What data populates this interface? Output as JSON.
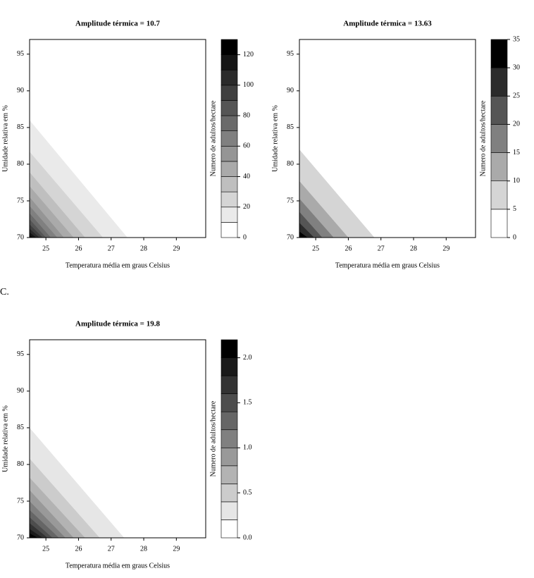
{
  "chart_data": [
    {
      "type": "contour",
      "title": "Amplitude térmica = 10.7",
      "x_label": "Temperatura média em graus Celsius",
      "y_label": "Umidade relativa em %",
      "colorbar_label": "Numero de adultos/hectare",
      "xlim": [
        24.5,
        29.9
      ],
      "ylim": [
        70,
        97
      ],
      "xticks": [
        25,
        26,
        27,
        28,
        29
      ],
      "yticks": [
        70,
        75,
        80,
        85,
        90,
        95
      ],
      "levels": [
        0,
        10,
        20,
        30,
        40,
        50,
        60,
        70,
        80,
        90,
        100,
        110,
        120,
        130
      ],
      "cbar_ticks": [
        0,
        20,
        40,
        60,
        80,
        100,
        120
      ],
      "colormap": [
        "#ffffff",
        "#000000"
      ],
      "contours": [
        {
          "y": 86,
          "x": 27.5
        },
        {
          "y": 81.7,
          "x": 26.75
        },
        {
          "y": 78.9,
          "x": 26.2
        },
        {
          "y": 77,
          "x": 25.85
        },
        {
          "y": 75.5,
          "x": 25.55
        },
        {
          "y": 74.3,
          "x": 25.35
        },
        {
          "y": 73.3,
          "x": 25.15
        },
        {
          "y": 72.5,
          "x": 25.0
        },
        {
          "y": 71.8,
          "x": 24.9
        },
        {
          "y": 71.2,
          "x": 24.8
        },
        {
          "y": 70.7,
          "x": 24.7
        },
        {
          "y": 70.3,
          "x": 24.6
        }
      ]
    },
    {
      "type": "contour",
      "title": "Amplitude térmica = 13.63",
      "x_label": "Temperatura média em graus Celsius",
      "y_label": "Umidade relativa em %",
      "colorbar_label": "Numero de adultos/hectare",
      "xlim": [
        24.5,
        29.9
      ],
      "ylim": [
        70,
        97
      ],
      "xticks": [
        25,
        26,
        27,
        28,
        29
      ],
      "yticks": [
        70,
        75,
        80,
        85,
        90,
        95
      ],
      "levels": [
        0,
        5,
        10,
        15,
        20,
        25,
        30,
        35
      ],
      "cbar_ticks": [
        0,
        5,
        10,
        15,
        20,
        25,
        30,
        35
      ],
      "colormap": [
        "#ffffff",
        "#000000"
      ],
      "contours": [
        {
          "y": 82,
          "x": 26.8
        },
        {
          "y": 77.7,
          "x": 26.0
        },
        {
          "y": 75.3,
          "x": 25.55
        },
        {
          "y": 73.5,
          "x": 25.2
        },
        {
          "y": 72,
          "x": 24.95
        },
        {
          "y": 70.8,
          "x": 24.75
        }
      ]
    },
    {
      "type": "contour",
      "panel_label": "C.",
      "title": "Amplitude térmica = 19.8",
      "x_label": "Temperatura média em graus Celsius",
      "y_label": "Umidade relativa em %",
      "colorbar_label": "Numero de adultos/hectare",
      "xlim": [
        24.5,
        29.9
      ],
      "ylim": [
        70,
        97
      ],
      "xticks": [
        25,
        26,
        27,
        28,
        29
      ],
      "yticks": [
        70,
        75,
        80,
        85,
        90,
        95
      ],
      "levels": [
        0,
        0.2,
        0.4,
        0.6,
        0.8,
        1,
        1.2,
        1.4,
        1.6,
        1.8,
        2,
        2.2
      ],
      "cbar_ticks": [
        {
          "value": 0,
          "label": "0.0"
        },
        {
          "value": 0.5,
          "label": "0.5"
        },
        {
          "value": 1,
          "label": "1.0"
        },
        {
          "value": 1.5,
          "label": "1.5"
        },
        {
          "value": 2,
          "label": "2.0"
        }
      ],
      "colormap": [
        "#ffffff",
        "#000000"
      ],
      "contours": [
        {
          "y": 85,
          "x": 27.4
        },
        {
          "y": 80.8,
          "x": 26.65
        },
        {
          "y": 78.2,
          "x": 26.2
        },
        {
          "y": 76.5,
          "x": 25.85
        },
        {
          "y": 75,
          "x": 25.6
        },
        {
          "y": 73.8,
          "x": 25.4
        },
        {
          "y": 72.8,
          "x": 25.2
        },
        {
          "y": 72,
          "x": 25.05
        },
        {
          "y": 71.2,
          "x": 24.9
        },
        {
          "y": 70.6,
          "x": 24.75
        }
      ]
    }
  ]
}
